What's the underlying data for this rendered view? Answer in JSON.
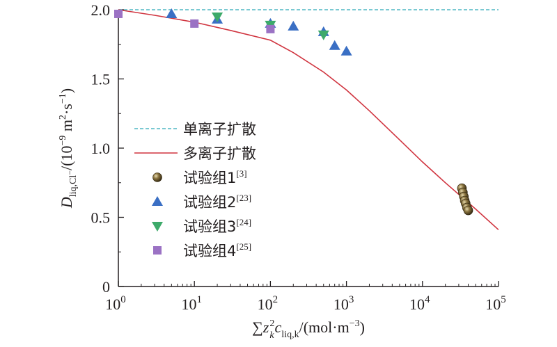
{
  "chart_data": {
    "type": "scatter",
    "xscale": "log",
    "xlim": [
      1,
      100000
    ],
    "ylim": [
      0,
      2.0
    ],
    "grid": false,
    "legend_position": "left-center",
    "x_ticks": [
      {
        "value": 1,
        "base": "10",
        "exp": "0"
      },
      {
        "value": 10,
        "base": "10",
        "exp": "1"
      },
      {
        "value": 100,
        "base": "10",
        "exp": "2"
      },
      {
        "value": 1000,
        "base": "10",
        "exp": "3"
      },
      {
        "value": 10000,
        "base": "10",
        "exp": "4"
      },
      {
        "value": 100000,
        "base": "10",
        "exp": "5"
      }
    ],
    "y_ticks": [
      {
        "value": 0,
        "label": "0"
      },
      {
        "value": 0.5,
        "label": "0.5"
      },
      {
        "value": 1.0,
        "label": "1.0"
      },
      {
        "value": 1.5,
        "label": "1.5"
      },
      {
        "value": 2.0,
        "label": "2.0"
      }
    ],
    "xlabel": {
      "sum": "∑",
      "z": "z",
      "z_sup": "2",
      "z_sub": "k",
      "c": "c",
      "c_sub": "liq,k",
      "unit_open": "/(mol·m",
      "unit_exp": "−3",
      "unit_close": ")"
    },
    "ylabel": {
      "D": "D",
      "D_sub": "liq,Cl",
      "D_sub_sup": "−",
      "unit_open": "/(10",
      "unit_exp1": "−9",
      "unit_mid": " m",
      "unit_exp2": "2",
      "unit_mid2": "·s",
      "unit_exp3": "−1",
      "unit_close": ")"
    },
    "series": [
      {
        "id": "single-ion",
        "name": "单离子扩散",
        "kind": "dashed-line",
        "color": "#4fb7c4",
        "x": [
          1,
          100000
        ],
        "y": [
          2.0,
          2.0
        ]
      },
      {
        "id": "multi-ion",
        "name": "多离子扩散",
        "kind": "line",
        "color": "#d0343f",
        "x": [
          1,
          3,
          10,
          30,
          100,
          200,
          500,
          1000,
          2000,
          5000,
          10000,
          20000,
          50000,
          100000
        ],
        "y": [
          2.0,
          1.96,
          1.91,
          1.85,
          1.78,
          1.69,
          1.55,
          1.42,
          1.27,
          1.06,
          0.9,
          0.75,
          0.56,
          0.41
        ]
      },
      {
        "id": "test-1",
        "name": "试验组1",
        "ref": "[3]",
        "kind": "sphere",
        "color": "#6b5a2e",
        "x": [
          33000,
          34000,
          35000,
          36000,
          37000,
          38500,
          40000
        ],
        "y": [
          0.71,
          0.68,
          0.65,
          0.62,
          0.6,
          0.57,
          0.55
        ]
      },
      {
        "id": "test-2",
        "name": "试验组2",
        "ref": "[23]",
        "kind": "triangle-up",
        "color": "#3a6fc4",
        "x": [
          5,
          20,
          100,
          200,
          500,
          700,
          1000
        ],
        "y": [
          1.97,
          1.93,
          1.9,
          1.88,
          1.84,
          1.74,
          1.7
        ]
      },
      {
        "id": "test-3",
        "name": "试验组3",
        "ref": "[24]",
        "kind": "triangle-down",
        "color": "#3daa6a",
        "x": [
          20,
          100,
          500
        ],
        "y": [
          1.95,
          1.89,
          1.82
        ]
      },
      {
        "id": "test-4",
        "name": "试验组4",
        "ref": "[25]",
        "kind": "square",
        "color": "#9b72c4",
        "x": [
          1,
          10,
          100
        ],
        "y": [
          1.97,
          1.9,
          1.86
        ]
      }
    ]
  }
}
